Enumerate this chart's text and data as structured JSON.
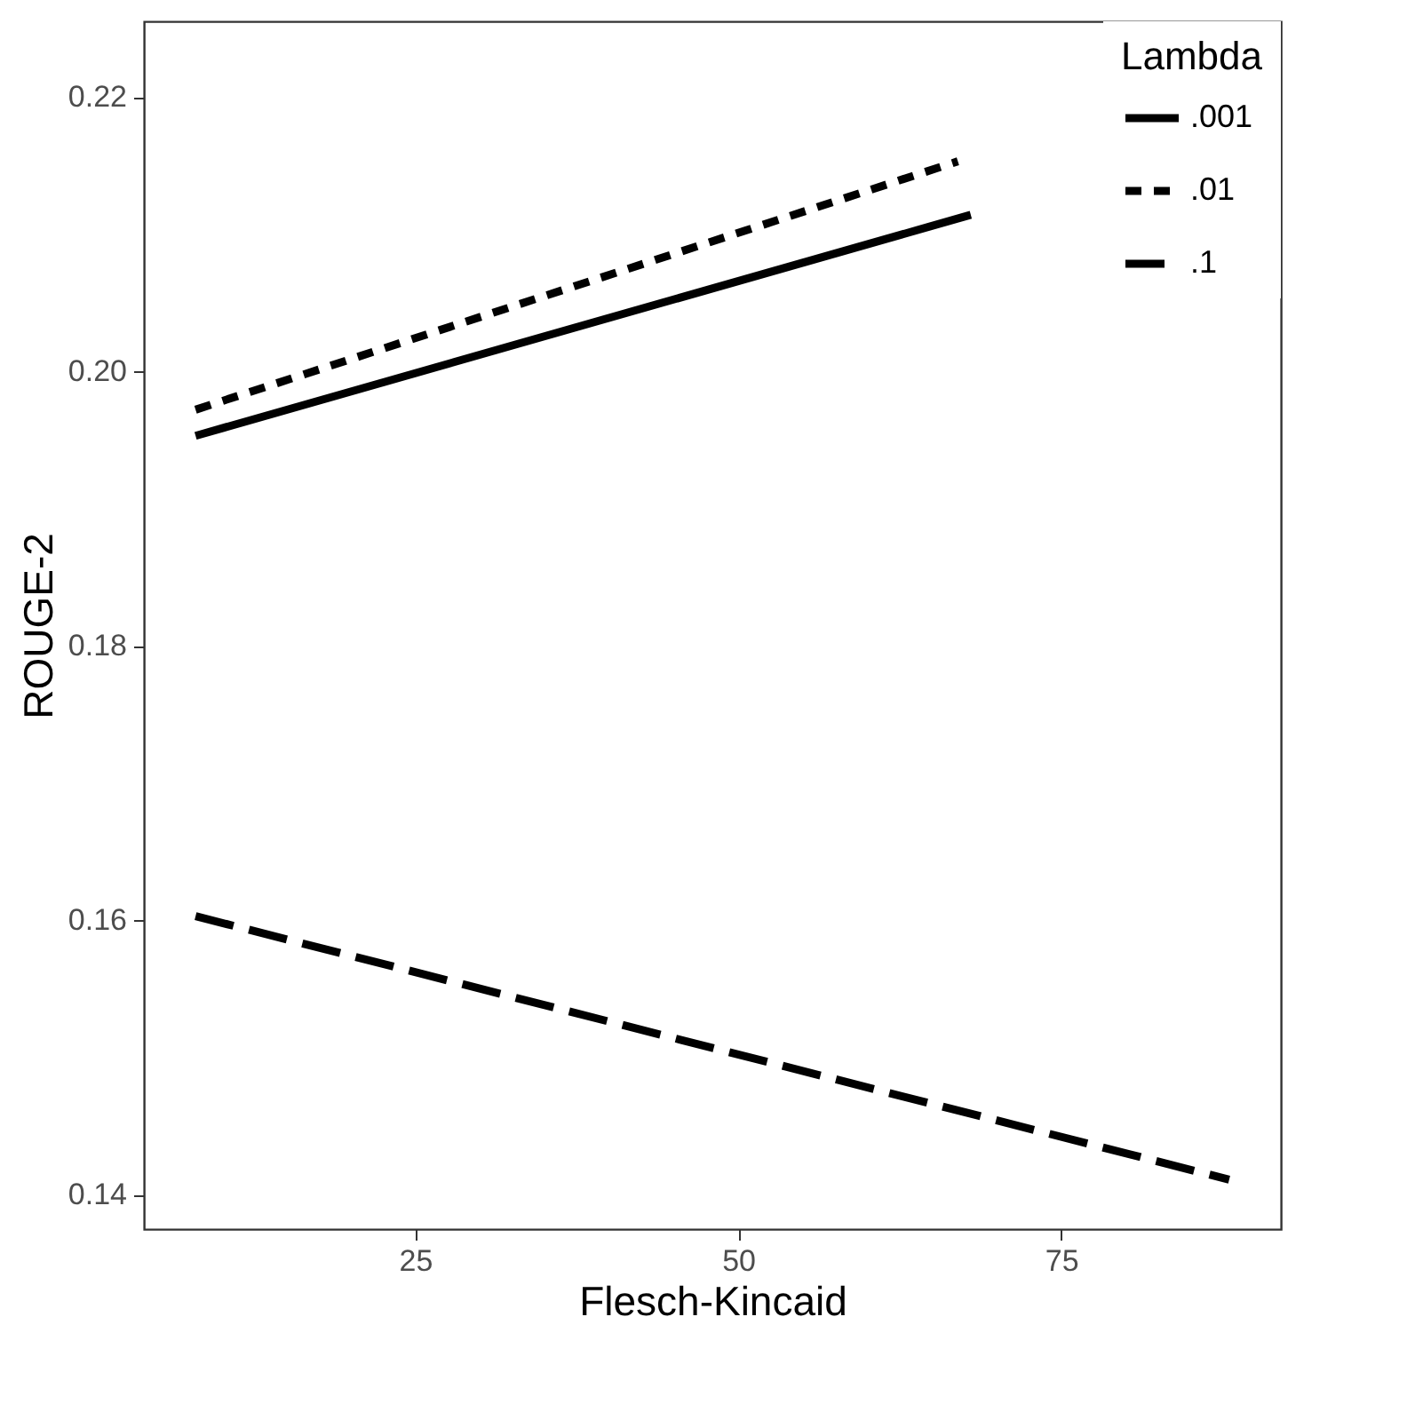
{
  "chart_data": {
    "type": "line",
    "xlabel": "Flesch-Kincaid",
    "ylabel": "ROUGE-2",
    "legend_title": "Lambda",
    "legend": "top right",
    "grid": false,
    "marker": "none",
    "xlim": [
      4,
      92
    ],
    "xticks": [
      25,
      50,
      75
    ],
    "ylim": [
      0.1375,
      0.2255
    ],
    "yticks": [
      0.14,
      0.16,
      0.18,
      {
        "value": 0.2,
        "label": "0.20"
      },
      0.22
    ],
    "series": [
      {
        "name": ".001",
        "color": "#000000",
        "line_style": "solid",
        "x": [
          8,
          68
        ],
        "values": [
          0.1953,
          0.2114
        ]
      },
      {
        "name": ".01",
        "color": "#000000",
        "line_style": "dotted",
        "x": [
          8,
          67
        ],
        "values": [
          0.1972,
          0.2153
        ]
      },
      {
        "name": ".1",
        "color": "#000000",
        "line_style": "dashed",
        "x": [
          8,
          88
        ],
        "values": [
          0.1603,
          0.1411
        ]
      }
    ]
  }
}
